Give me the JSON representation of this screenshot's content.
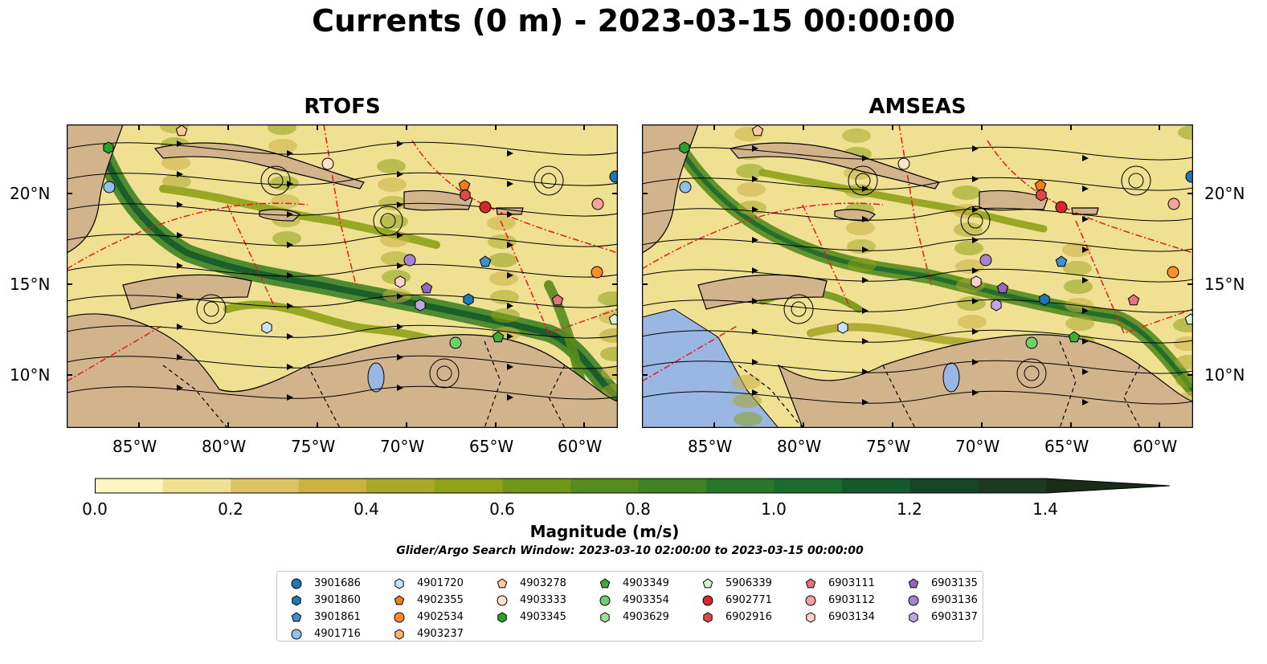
{
  "title": "Currents (0 m) - 2023-03-15 00:00:00",
  "panels": [
    {
      "title": "RTOFS"
    },
    {
      "title": "AMSEAS"
    }
  ],
  "lon_labels": [
    "85°W",
    "80°W",
    "75°W",
    "70°W",
    "65°W",
    "60°W"
  ],
  "lat_labels": [
    "20°N",
    "15°N",
    "10°N"
  ],
  "colorbar": {
    "label": "Magnitude (m/s)",
    "ticks": [
      "0.0",
      "0.2",
      "0.4",
      "0.6",
      "0.8",
      "1.0",
      "1.2",
      "1.4"
    ],
    "colors": [
      "#fdf6c3",
      "#f0e092",
      "#dcc464",
      "#c9b142",
      "#aaa72a",
      "#8ea21a",
      "#6f9719",
      "#568b1e",
      "#3f8225",
      "#2a7629",
      "#1b6b2e",
      "#13592b",
      "#174428",
      "#1b3a20",
      "#1a2b18"
    ]
  },
  "search_window": "Glider/Argo Search Window: 2023-03-10 02:00:00 to 2023-03-15 00:00:00",
  "legend": [
    {
      "label": "3901686",
      "marker": "circle",
      "color": "#1f77b4"
    },
    {
      "label": "3901860",
      "marker": "hexagon",
      "color": "#1f77b4"
    },
    {
      "label": "3901861",
      "marker": "pentagon",
      "color": "#3c8fd0"
    },
    {
      "label": "4901716",
      "marker": "circle",
      "color": "#8fc1ea"
    },
    {
      "label": "4901720",
      "marker": "hexagon",
      "color": "#c6e4f7"
    },
    {
      "label": "4902355",
      "marker": "pentagon",
      "color": "#f07f1a"
    },
    {
      "label": "4902534",
      "marker": "circle",
      "color": "#ff8c2a"
    },
    {
      "label": "4903237",
      "marker": "hexagon",
      "color": "#ffb073"
    },
    {
      "label": "4903278",
      "marker": "pentagon",
      "color": "#fcc99c"
    },
    {
      "label": "4903333",
      "marker": "circle",
      "color": "#fde3c7"
    },
    {
      "label": "4903345",
      "marker": "hexagon",
      "color": "#2ca02c"
    },
    {
      "label": "4903349",
      "marker": "pentagon",
      "color": "#3aad3a"
    },
    {
      "label": "4903354",
      "marker": "circle",
      "color": "#6fcf6f"
    },
    {
      "label": "4903629",
      "marker": "hexagon",
      "color": "#98e398"
    },
    {
      "label": "5906339",
      "marker": "pentagon",
      "color": "#d4f7cf"
    },
    {
      "label": "6902771",
      "marker": "circle",
      "color": "#d62728"
    },
    {
      "label": "6902916",
      "marker": "hexagon",
      "color": "#e0474a"
    },
    {
      "label": "6903111",
      "marker": "pentagon",
      "color": "#e8737c"
    },
    {
      "label": "6903112",
      "marker": "circle",
      "color": "#f1a3a2"
    },
    {
      "label": "6903134",
      "marker": "hexagon",
      "color": "#fbd3cd"
    },
    {
      "label": "6903135",
      "marker": "pentagon",
      "color": "#9467bd"
    },
    {
      "label": "6903136",
      "marker": "circle",
      "color": "#a884d0"
    },
    {
      "label": "6903137",
      "marker": "hexagon",
      "color": "#c1a4e3"
    }
  ],
  "colors": {
    "land": "#d2b48c",
    "lake": "#9ab6e3",
    "boundary": "#e41a1c"
  }
}
